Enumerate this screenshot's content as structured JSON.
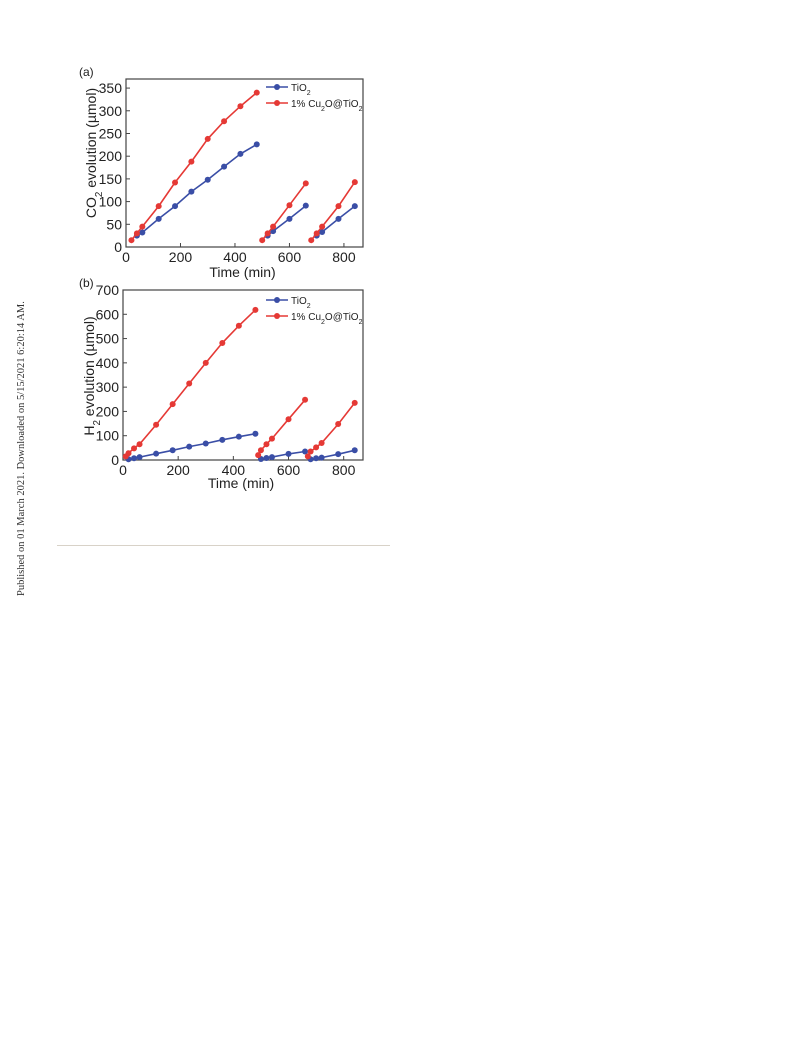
{
  "side_note": "Published on 01 March 2021. Downloaded on 5/15/2021 6:20:14 AM.",
  "colors": {
    "tio2": "#3a4ea6",
    "cu2o": "#e53935",
    "axis": "#444444",
    "rule": "#d8d2c8"
  },
  "chart_data": [
    {
      "type": "line",
      "panel_label": "(a)",
      "xlabel": "Time (min)",
      "ylabel_parts": [
        "CO",
        "2",
        " evolution (µmol)"
      ],
      "xlim": [
        0,
        870
      ],
      "ylim": [
        0,
        370
      ],
      "xticks": [
        0,
        200,
        400,
        600,
        800
      ],
      "yticks": [
        0,
        50,
        100,
        150,
        200,
        250,
        300,
        350
      ],
      "legend_position": "top-right",
      "series": [
        {
          "legend_parts": [
            "TiO",
            "2",
            ""
          ],
          "color": "#3a4ea6",
          "segments": [
            [
              [
                40,
                25
              ],
              [
                60,
                32
              ],
              [
                120,
                62
              ],
              [
                180,
                90
              ],
              [
                240,
                122
              ],
              [
                300,
                148
              ],
              [
                360,
                177
              ],
              [
                420,
                205
              ],
              [
                480,
                226
              ]
            ],
            [
              [
                520,
                25
              ],
              [
                540,
                35
              ],
              [
                600,
                62
              ],
              [
                660,
                91
              ]
            ],
            [
              [
                700,
                25
              ],
              [
                720,
                33
              ],
              [
                780,
                62
              ],
              [
                840,
                90
              ]
            ]
          ]
        },
        {
          "legend_parts": [
            "1% Cu",
            "2",
            "O@TiO",
            "2"
          ],
          "color": "#e53935",
          "segments": [
            [
              [
                20,
                15
              ],
              [
                40,
                30
              ],
              [
                60,
                45
              ],
              [
                120,
                90
              ],
              [
                180,
                142
              ],
              [
                240,
                188
              ],
              [
                300,
                238
              ],
              [
                360,
                277
              ],
              [
                420,
                310
              ],
              [
                480,
                340
              ]
            ],
            [
              [
                500,
                15
              ],
              [
                520,
                30
              ],
              [
                540,
                45
              ],
              [
                600,
                92
              ],
              [
                660,
                140
              ]
            ],
            [
              [
                680,
                15
              ],
              [
                700,
                30
              ],
              [
                720,
                45
              ],
              [
                780,
                90
              ],
              [
                840,
                143
              ]
            ]
          ]
        }
      ]
    },
    {
      "type": "line",
      "panel_label": "(b)",
      "xlabel": "Time (min)",
      "ylabel_parts": [
        "H",
        "2",
        " evolution (µmol)"
      ],
      "xlim": [
        0,
        870
      ],
      "ylim": [
        0,
        700
      ],
      "xticks": [
        0,
        200,
        400,
        600,
        800
      ],
      "yticks": [
        0,
        100,
        200,
        300,
        400,
        500,
        600,
        700
      ],
      "legend_position": "top-right",
      "series": [
        {
          "legend_parts": [
            "TiO",
            "2",
            ""
          ],
          "color": "#3a4ea6",
          "segments": [
            [
              [
                20,
                3
              ],
              [
                40,
                7
              ],
              [
                60,
                12
              ],
              [
                120,
                26
              ],
              [
                180,
                40
              ],
              [
                240,
                55
              ],
              [
                300,
                68
              ],
              [
                360,
                83
              ],
              [
                420,
                96
              ],
              [
                480,
                108
              ]
            ],
            [
              [
                500,
                4
              ],
              [
                520,
                8
              ],
              [
                540,
                12
              ],
              [
                600,
                25
              ],
              [
                660,
                35
              ]
            ],
            [
              [
                680,
                3
              ],
              [
                700,
                7
              ],
              [
                720,
                10
              ],
              [
                780,
                24
              ],
              [
                840,
                40
              ]
            ]
          ]
        },
        {
          "legend_parts": [
            "1% Cu",
            "2",
            "O@TiO",
            "2"
          ],
          "color": "#e53935",
          "segments": [
            [
              [
                10,
                15
              ],
              [
                20,
                28
              ],
              [
                40,
                48
              ],
              [
                60,
                65
              ],
              [
                120,
                145
              ],
              [
                180,
                230
              ],
              [
                240,
                315
              ],
              [
                300,
                400
              ],
              [
                360,
                482
              ],
              [
                420,
                553
              ],
              [
                480,
                618
              ]
            ],
            [
              [
                490,
                20
              ],
              [
                500,
                40
              ],
              [
                520,
                65
              ],
              [
                540,
                88
              ],
              [
                600,
                168
              ],
              [
                660,
                248
              ]
            ],
            [
              [
                670,
                15
              ],
              [
                680,
                35
              ],
              [
                700,
                52
              ],
              [
                720,
                70
              ],
              [
                780,
                148
              ],
              [
                840,
                235
              ]
            ]
          ]
        }
      ]
    }
  ]
}
